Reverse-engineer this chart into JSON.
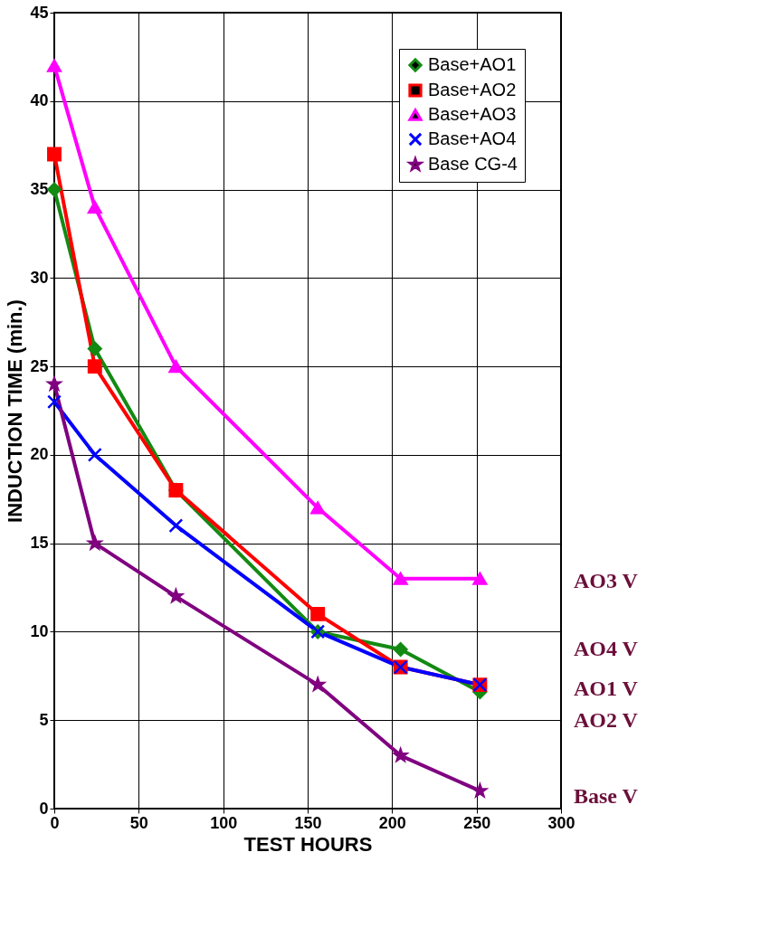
{
  "chart_data": {
    "type": "line",
    "xlabel": "TEST  HOURS",
    "ylabel": "INDUCTION  TIME  (min.)",
    "x": [
      0,
      24,
      72,
      156,
      205,
      252
    ],
    "series": [
      {
        "name": "Base+AO1",
        "color": "#138a13",
        "marker": "diamond",
        "values": [
          35,
          26,
          18,
          10,
          9,
          6.6
        ]
      },
      {
        "name": "Base+AO2",
        "color": "#ff0000",
        "marker": "square",
        "values": [
          37,
          25,
          18,
          11,
          8,
          7
        ]
      },
      {
        "name": "Base+AO3",
        "color": "#ff00ff",
        "marker": "triangle",
        "values": [
          42,
          34,
          25,
          17,
          13,
          13
        ]
      },
      {
        "name": "Base+AO4",
        "color": "#0000ff",
        "marker": "cross",
        "values": [
          23,
          20,
          16,
          10,
          8,
          7
        ]
      },
      {
        "name": "Base CG-4",
        "color": "#800080",
        "marker": "star",
        "values": [
          24,
          15,
          12,
          7,
          3,
          1
        ]
      }
    ],
    "xlim": [
      0,
      300
    ],
    "xticks": [
      0,
      50,
      100,
      150,
      200,
      250,
      300
    ],
    "ylim": [
      0,
      45
    ],
    "yticks": [
      0,
      5,
      10,
      15,
      20,
      25,
      30,
      35,
      40,
      45
    ],
    "grid": true,
    "legend": "top right",
    "line_style": "solid",
    "annotations": [
      "AO3 V",
      "AO4 V",
      "AO1 V",
      "AO2 V",
      "Base V"
    ]
  }
}
